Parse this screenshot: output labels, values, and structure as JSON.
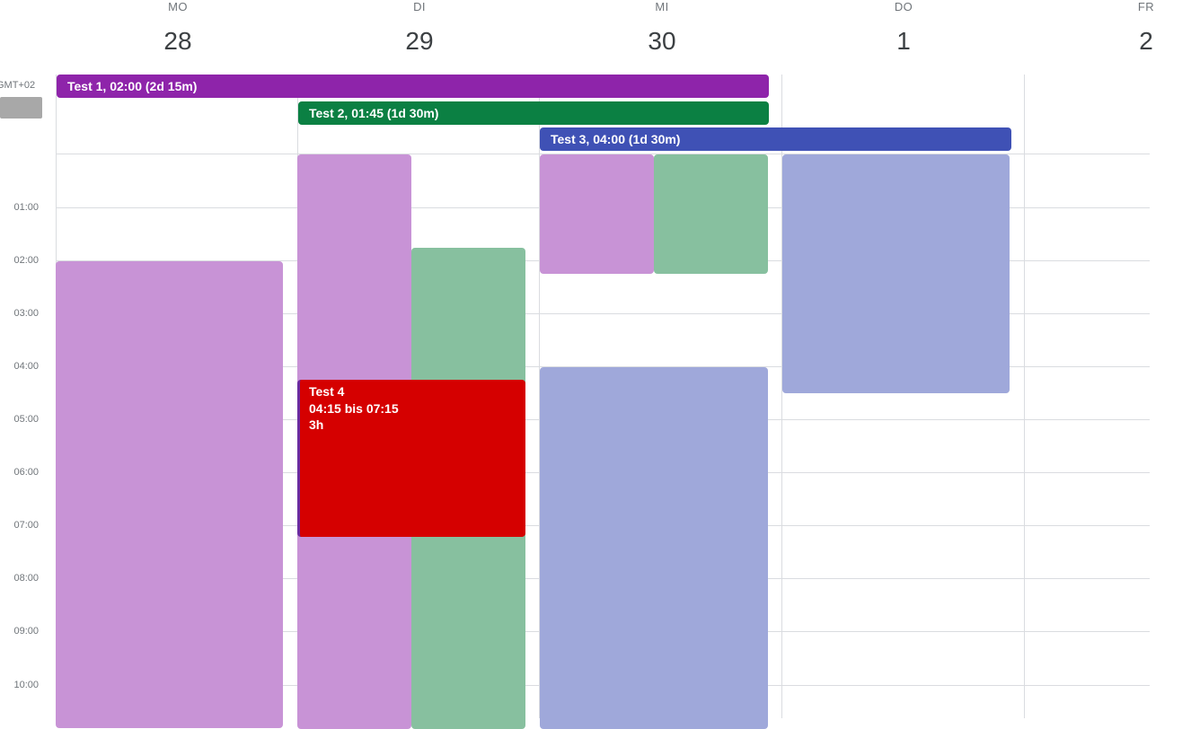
{
  "header": {
    "days": [
      {
        "name": "MO",
        "num": "28"
      },
      {
        "name": "DI",
        "num": "29"
      },
      {
        "name": "MI",
        "num": "30"
      },
      {
        "name": "DO",
        "num": "1"
      },
      {
        "name": "FR",
        "num": "2"
      }
    ],
    "timezone": "GMT+02"
  },
  "time_labels": [
    "01:00",
    "02:00",
    "03:00",
    "04:00",
    "05:00",
    "06:00",
    "07:00",
    "08:00",
    "09:00",
    "10:00"
  ],
  "allday_events": [
    {
      "label": "Test 1, 02:00  (2d 15m)",
      "color": "#8e24aa"
    },
    {
      "label": "Test 2, 01:45  (1d 30m)",
      "color": "#0b8043"
    },
    {
      "label": "Test 3, 04:00  (1d 30m)",
      "color": "#3f51b5"
    }
  ],
  "timed_event": {
    "title": "Test 4",
    "time": "04:15 bis 07:15",
    "duration": "3h",
    "color": "#d50000"
  },
  "colors": {
    "purple_light": "#c893d6",
    "green_light": "#87c09f",
    "blue_light": "#9fa8da",
    "grid": "#dadce0"
  }
}
